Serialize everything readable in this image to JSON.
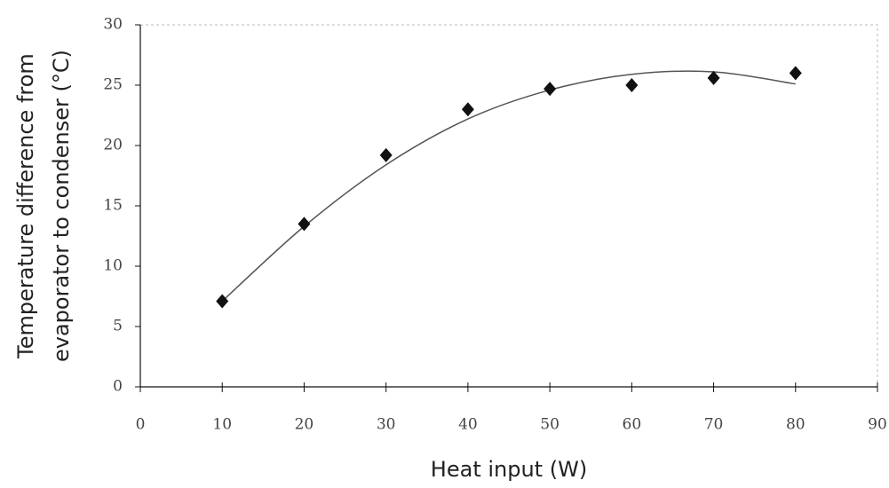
{
  "chart_data": {
    "type": "scatter",
    "xlabel": "Heat input (W)",
    "ylabel": [
      "Temperature difference from",
      "evaporator to condenser (°C)"
    ],
    "x": [
      10,
      20,
      30,
      40,
      50,
      60,
      70,
      80
    ],
    "values": [
      7.1,
      13.5,
      19.2,
      23.0,
      24.7,
      25.0,
      25.6,
      26.0
    ],
    "color": "#111111",
    "trend": {
      "x": [
        10,
        20,
        30,
        40,
        50,
        60,
        70,
        80
      ],
      "values": [
        7.1,
        13.3,
        18.4,
        22.2,
        24.6,
        25.9,
        26.1,
        25.1
      ],
      "color": "#555555"
    },
    "xlim": [
      0,
      90
    ],
    "xticks": [
      0,
      10,
      20,
      30,
      40,
      50,
      60,
      70,
      80,
      90
    ],
    "ylim": [
      0,
      30
    ],
    "yticks": [
      0,
      5,
      10,
      15,
      20,
      25,
      30
    ]
  }
}
